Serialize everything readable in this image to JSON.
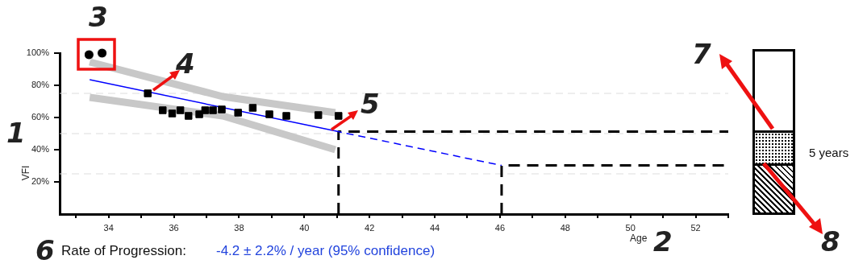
{
  "chart_data": {
    "type": "scatter",
    "xlabel": "Age",
    "ylabel": "VFI",
    "xlim": [
      32.5,
      53
    ],
    "ylim": [
      0,
      100
    ],
    "xticks": [
      {
        "value": 33,
        "label": null
      },
      34,
      {
        "value": 35,
        "label": null
      },
      36,
      {
        "value": 37,
        "label": null
      },
      38,
      {
        "value": 39,
        "label": null
      },
      40,
      {
        "value": 41,
        "label": null
      },
      42,
      {
        "value": 43,
        "label": null
      },
      44,
      {
        "value": 45,
        "label": null
      },
      46,
      {
        "value": 47,
        "label": null
      },
      48,
      {
        "value": 49,
        "label": null
      },
      50,
      {
        "value": 51,
        "label": null
      },
      52,
      {
        "value": 53,
        "label": null
      }
    ],
    "yticks": [
      {
        "value": 20,
        "label": "20%"
      },
      {
        "value": 40,
        "label": "40%"
      },
      {
        "value": 60,
        "label": "60%"
      },
      {
        "value": 80,
        "label": "80%"
      },
      {
        "value": 100,
        "label": "100%"
      }
    ],
    "grid": false,
    "legend": false,
    "ref_lines": [
      {
        "axis": "y",
        "value": 25,
        "color": "#dddddd",
        "line_style": "dashed"
      },
      {
        "axis": "y",
        "value": 50,
        "color": "#dddddd",
        "line_style": "dashed"
      },
      {
        "axis": "y",
        "value": 75,
        "color": "#dddddd",
        "line_style": "dashed"
      }
    ],
    "series": [
      {
        "type": "scatter",
        "marker": "circle",
        "color": "#000000",
        "x": [
          33.4,
          33.8
        ],
        "values": [
          99,
          100
        ]
      },
      {
        "type": "scatter",
        "marker": "square",
        "color": "#000000",
        "x": [
          35.2,
          35.66,
          35.95,
          36.2,
          36.45,
          36.78,
          36.96,
          37.2,
          37.47,
          37.97,
          38.42,
          38.93,
          39.45,
          40.43,
          41.05
        ],
        "values": [
          75,
          64.5,
          62.5,
          64.5,
          61,
          62,
          64.5,
          64.5,
          65,
          63,
          66,
          62,
          61,
          61.5,
          61
        ]
      },
      {
        "type": "line",
        "marker": "none",
        "line_style": "solid",
        "color": "#c8c8c8",
        "x": [
          33.42,
          37.5,
          40.95
        ],
        "values": [
          94.5,
          73,
          63
        ]
      },
      {
        "type": "line",
        "marker": "none",
        "line_style": "solid",
        "color": "#c8c8c8",
        "x": [
          33.42,
          37.5,
          40.95
        ],
        "values": [
          72.5,
          61,
          40
        ]
      },
      {
        "type": "line",
        "marker": "none",
        "line_style": "solid",
        "color": "#0000ff",
        "x": [
          33.42,
          40.93
        ],
        "values": [
          83.5,
          51.7
        ]
      },
      {
        "type": "line",
        "marker": "none",
        "line_style": "dashed",
        "color": "#0000ff",
        "x": [
          40.93,
          46.05
        ],
        "values": [
          51.7,
          30.2
        ]
      },
      {
        "type": "line",
        "marker": "none",
        "line_style": "dashed",
        "color": "#000000",
        "x": [
          41.05,
          41.05,
          53
        ],
        "values": [
          0,
          51.3,
          51.3
        ]
      },
      {
        "type": "line",
        "marker": "none",
        "line_style": "dashed",
        "color": "#000000",
        "x": [
          46.05,
          46.05,
          53
        ],
        "values": [
          0,
          30.2,
          30.2
        ]
      }
    ],
    "annotations": [
      "1",
      "2",
      "3",
      "4",
      "5",
      "6",
      "7",
      "8",
      "Rate of Progression:",
      "-4.2 ± 2.2% / year (95% confidence)",
      "5 years"
    ]
  }
}
